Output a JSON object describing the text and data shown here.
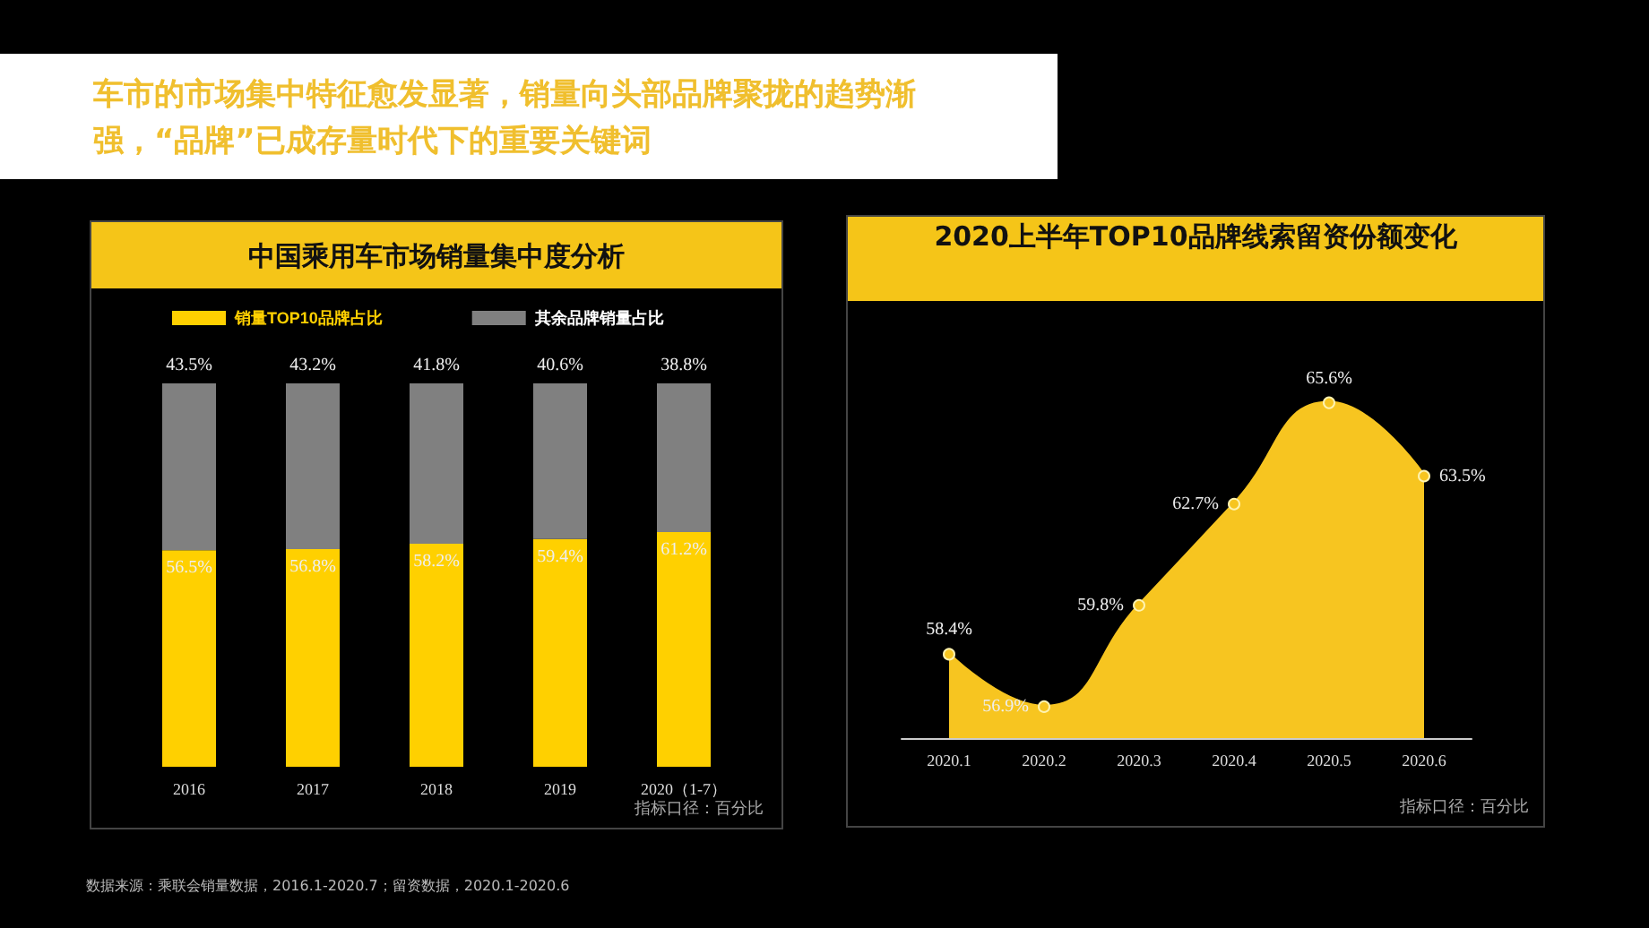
{
  "chart_data": [
    {
      "type": "bar",
      "title": "中国乘用车市场销量集中度分析",
      "subtitle": "车市的市场集中特征愈发显著，销量向头部品牌聚拢的趋势渐强，“品牌”已成存量时代下的重要关键词",
      "categories": [
        "2016",
        "2017",
        "2018",
        "2019",
        "2020（1-7）"
      ],
      "stacked": true,
      "legend": "top left",
      "series": [
        {
          "name": "销量TOP10品牌占比",
          "color": "#ffd000",
          "values": [
            56.5,
            56.8,
            58.2,
            59.4,
            61.2
          ],
          "value_labels": [
            "56.5%",
            "56.8%",
            "58.2%",
            "59.4%",
            "61.2%"
          ]
        },
        {
          "name": "其余品牌销量占比",
          "color": "#808080",
          "values": [
            43.5,
            43.2,
            41.8,
            40.6,
            38.8
          ],
          "value_labels": [
            "43.5%",
            "43.2%",
            "41.8%",
            "40.6%",
            "38.8%"
          ]
        }
      ],
      "annotations": [
        "指标口径：百分比",
        "数据来源：乘联会销量数据，2016.1-2020.7；留资数据，2020.1-2020.6"
      ]
    },
    {
      "type": "area",
      "title": "2020上半年TOP10品牌线索留资份额变化",
      "categories": [
        "2020.1",
        "2020.2",
        "2020.3",
        "2020.4",
        "2020.5",
        "2020.6"
      ],
      "color": "#f7c520",
      "marker": "circle",
      "values": [
        58.4,
        56.9,
        59.8,
        62.7,
        65.6,
        63.5
      ],
      "value_labels": [
        "58.4%",
        "56.9%",
        "59.8%",
        "62.7%",
        "65.6%",
        "63.5%"
      ],
      "annotations": [
        "指标口径：百分比"
      ]
    }
  ]
}
